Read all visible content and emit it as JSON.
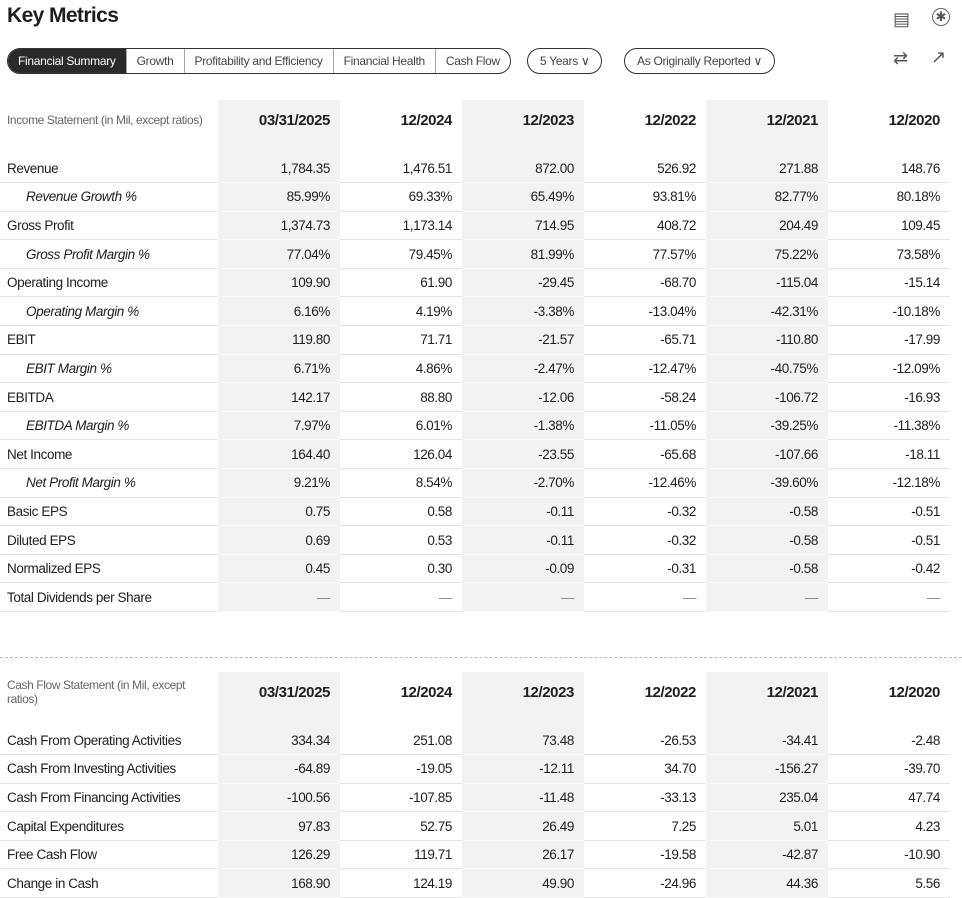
{
  "title": "Key Metrics",
  "icons": {
    "feedback": "comment-icon",
    "settings": "asterisk-icon",
    "swap": "swap-arrows-icon",
    "export": "external-link-icon"
  },
  "tabs": [
    {
      "label": "Financial Summary",
      "active": true
    },
    {
      "label": "Growth"
    },
    {
      "label": "Profitability and Efficiency"
    },
    {
      "label": "Financial Health"
    },
    {
      "label": "Cash Flow"
    }
  ],
  "period_select": "5 Years",
  "report_select": "As Originally Reported",
  "columns": [
    "03/31/2025",
    "12/2024",
    "12/2023",
    "12/2022",
    "12/2021",
    "12/2020"
  ],
  "income": {
    "header": "Income Statement (in Mil, except ratios)",
    "rows": [
      {
        "label": "Revenue",
        "values": [
          "1,784.35",
          "1,476.51",
          "872.00",
          "526.92",
          "271.88",
          "148.76"
        ]
      },
      {
        "label": "Revenue Growth %",
        "indent": true,
        "values": [
          "85.99%",
          "69.33%",
          "65.49%",
          "93.81%",
          "82.77%",
          "80.18%"
        ]
      },
      {
        "label": "Gross Profit",
        "values": [
          "1,374.73",
          "1,173.14",
          "714.95",
          "408.72",
          "204.49",
          "109.45"
        ]
      },
      {
        "label": "Gross Profit Margin %",
        "indent": true,
        "values": [
          "77.04%",
          "79.45%",
          "81.99%",
          "77.57%",
          "75.22%",
          "73.58%"
        ]
      },
      {
        "label": "Operating Income",
        "values": [
          "109.90",
          "61.90",
          "-29.45",
          "-68.70",
          "-115.04",
          "-15.14"
        ]
      },
      {
        "label": "Operating Margin %",
        "indent": true,
        "values": [
          "6.16%",
          "4.19%",
          "-3.38%",
          "-13.04%",
          "-42.31%",
          "-10.18%"
        ]
      },
      {
        "label": "EBIT",
        "values": [
          "119.80",
          "71.71",
          "-21.57",
          "-65.71",
          "-110.80",
          "-17.99"
        ]
      },
      {
        "label": "EBIT Margin %",
        "indent": true,
        "values": [
          "6.71%",
          "4.86%",
          "-2.47%",
          "-12.47%",
          "-40.75%",
          "-12.09%"
        ]
      },
      {
        "label": "EBITDA",
        "values": [
          "142.17",
          "88.80",
          "-12.06",
          "-58.24",
          "-106.72",
          "-16.93"
        ]
      },
      {
        "label": "EBITDA Margin %",
        "indent": true,
        "values": [
          "7.97%",
          "6.01%",
          "-1.38%",
          "-11.05%",
          "-39.25%",
          "-11.38%"
        ]
      },
      {
        "label": "Net Income",
        "values": [
          "164.40",
          "126.04",
          "-23.55",
          "-65.68",
          "-107.66",
          "-18.11"
        ]
      },
      {
        "label": "Net Profit Margin %",
        "indent": true,
        "values": [
          "9.21%",
          "8.54%",
          "-2.70%",
          "-12.46%",
          "-39.60%",
          "-12.18%"
        ]
      },
      {
        "label": "Basic EPS",
        "values": [
          "0.75",
          "0.58",
          "-0.11",
          "-0.32",
          "-0.58",
          "-0.51"
        ]
      },
      {
        "label": "Diluted EPS",
        "values": [
          "0.69",
          "0.53",
          "-0.11",
          "-0.32",
          "-0.58",
          "-0.51"
        ]
      },
      {
        "label": "Normalized EPS",
        "values": [
          "0.45",
          "0.30",
          "-0.09",
          "-0.31",
          "-0.58",
          "-0.42"
        ]
      },
      {
        "label": "Total Dividends per Share",
        "values": [
          "—",
          "—",
          "—",
          "—",
          "—",
          "—"
        ]
      }
    ]
  },
  "cashflow": {
    "header": "Cash Flow Statement (in Mil, except ratios)",
    "rows": [
      {
        "label": "Cash From Operating Activities",
        "values": [
          "334.34",
          "251.08",
          "73.48",
          "-26.53",
          "-34.41",
          "-2.48"
        ]
      },
      {
        "label": "Cash From Investing Activities",
        "values": [
          "-64.89",
          "-19.05",
          "-12.11",
          "34.70",
          "-156.27",
          "-39.70"
        ]
      },
      {
        "label": "Cash From Financing Activities",
        "values": [
          "-100.56",
          "-107.85",
          "-11.48",
          "-33.13",
          "235.04",
          "47.74"
        ]
      },
      {
        "label": "Capital Expenditures",
        "values": [
          "97.83",
          "52.75",
          "26.49",
          "7.25",
          "5.01",
          "4.23"
        ]
      },
      {
        "label": "Free Cash Flow",
        "values": [
          "126.29",
          "119.71",
          "26.17",
          "-19.58",
          "-42.87",
          "-10.90"
        ]
      },
      {
        "label": "Change in Cash",
        "values": [
          "168.90",
          "124.19",
          "49.90",
          "-24.96",
          "44.36",
          "5.56"
        ]
      }
    ]
  }
}
